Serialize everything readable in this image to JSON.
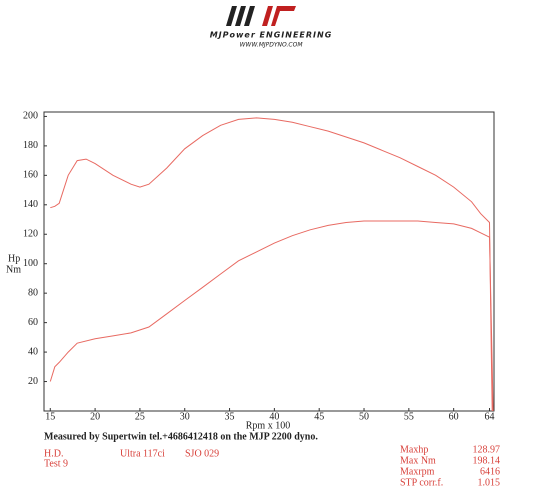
{
  "chart_data": {
    "type": "line",
    "brand": "MJPower ENGINEERING",
    "website": "WWW.MJPDYNO.COM",
    "ylabel": "Hp",
    "ylabel2": "Nm",
    "xlabel": "Rpm x 100",
    "xlim": [
      14.3,
      64.5
    ],
    "ylim": [
      0,
      203
    ],
    "xticks": [
      15,
      20,
      25,
      30,
      35,
      40,
      45,
      50,
      55,
      60,
      64
    ],
    "yticks": [
      20,
      40,
      60,
      80,
      100,
      120,
      140,
      160,
      180,
      200
    ],
    "series": [
      {
        "color": "#e86a62",
        "x": [
          15,
          15.5,
          16,
          17,
          18,
          19,
          20,
          22,
          24,
          25,
          26,
          28,
          30,
          32,
          34,
          36,
          38,
          40,
          42,
          44,
          46,
          48,
          50,
          52,
          54,
          56,
          58,
          60,
          62,
          63,
          64,
          64.2,
          64.3
        ],
        "values": [
          138,
          139,
          141,
          160,
          170,
          171,
          168,
          160,
          154,
          152,
          154,
          165,
          178,
          187,
          194,
          198,
          199,
          198,
          196,
          193,
          190,
          186,
          182,
          177,
          172,
          166,
          160,
          152,
          142,
          134,
          128,
          40,
          0
        ]
      },
      {
        "color": "#e86a62",
        "x": [
          15,
          15.5,
          16,
          17,
          18,
          20,
          22,
          24,
          26,
          28,
          30,
          32,
          34,
          36,
          38,
          40,
          42,
          44,
          46,
          48,
          50,
          52,
          54,
          56,
          58,
          60,
          62,
          63,
          64,
          64.2,
          64.4
        ],
        "values": [
          20,
          30,
          33,
          40,
          46,
          49,
          51,
          53,
          57,
          66,
          75,
          84,
          93,
          102,
          108,
          114,
          119,
          123,
          126,
          128,
          129,
          129,
          129,
          129,
          128,
          127,
          124,
          121,
          118,
          60,
          0
        ]
      }
    ],
    "note": "Measured by Supertwin tel.+4686412418 on the MJP 2200 dyno.",
    "info": [
      "H.D.",
      "Test 9",
      "Ultra 117ci",
      "SJO 029"
    ],
    "stats": [
      {
        "label": "Maxhp",
        "value": 128.97
      },
      {
        "label": "Max Nm",
        "value": 198.14
      },
      {
        "label": "Maxrpm",
        "value": 6416
      },
      {
        "label": "STP corr.f.",
        "value": 1.015
      }
    ]
  }
}
